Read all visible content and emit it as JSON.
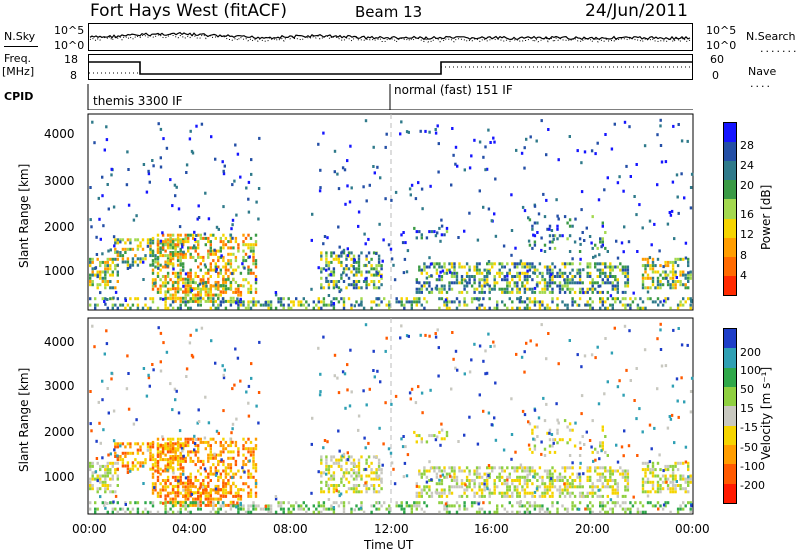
{
  "header": {
    "station": "Fort Hays West (fitACF)",
    "beam": "Beam 13",
    "date": "24/Jun/2011"
  },
  "side_labels": {
    "nsky": "N.Sky",
    "freq": "Freq.",
    "mhz": "[MHz]",
    "cpid": "CPID",
    "nsearch": "N.Search",
    "nave": "Nave"
  },
  "small_panels": {
    "nsky_ticks": [
      "10^5",
      "10^0"
    ],
    "nsearch_ticks": [
      "10^5",
      "10^0"
    ],
    "freq_ticks": [
      "18",
      "8"
    ],
    "nave_ticks": [
      "60",
      "0"
    ]
  },
  "cpid_segments": [
    {
      "label": "themis 3300 IF",
      "start_hour": 0
    },
    {
      "label": "normal (fast) 151 IF",
      "start_hour": 12
    }
  ],
  "chart_data": [
    {
      "type": "heatmap",
      "parameter": "power",
      "ylabel": "Slant Range [km]",
      "xlabel": "",
      "y_ticks": [
        "4000",
        "3000",
        "2000",
        "1000"
      ],
      "ylim": [
        200,
        4500
      ],
      "colorbar_label": "Power [dB]",
      "colorbar_ticks": [
        "28",
        "24",
        "20",
        "16",
        "12",
        "8",
        "4"
      ],
      "colorbar_colors": [
        "#1515ff",
        "#244fa6",
        "#2f7a8a",
        "#3a9a45",
        "#a3d94f",
        "#f5d400",
        "#ff9d00",
        "#ff6a00",
        "#ff2a00"
      ]
    },
    {
      "type": "heatmap",
      "parameter": "velocity",
      "ylabel": "Slant Range [km]",
      "xlabel": "Time UT",
      "y_ticks": [
        "4000",
        "3000",
        "2000",
        "1000"
      ],
      "ylim": [
        200,
        4500
      ],
      "x_ticks": [
        "00:00",
        "04:00",
        "08:00",
        "12:00",
        "16:00",
        "20:00",
        "00:00"
      ],
      "colorbar_label": "Velocity [m s⁻¹]",
      "colorbar_ticks": [
        "200",
        "100",
        "50",
        "15",
        "-15",
        "-50",
        "-100",
        "-200"
      ],
      "colorbar_colors": [
        "#1e3ec8",
        "#2fa0b4",
        "#2fa84a",
        "#8fd040",
        "#c8c8c0",
        "#f5d400",
        "#ff9d00",
        "#ff5a00",
        "#ff1a00"
      ]
    }
  ]
}
